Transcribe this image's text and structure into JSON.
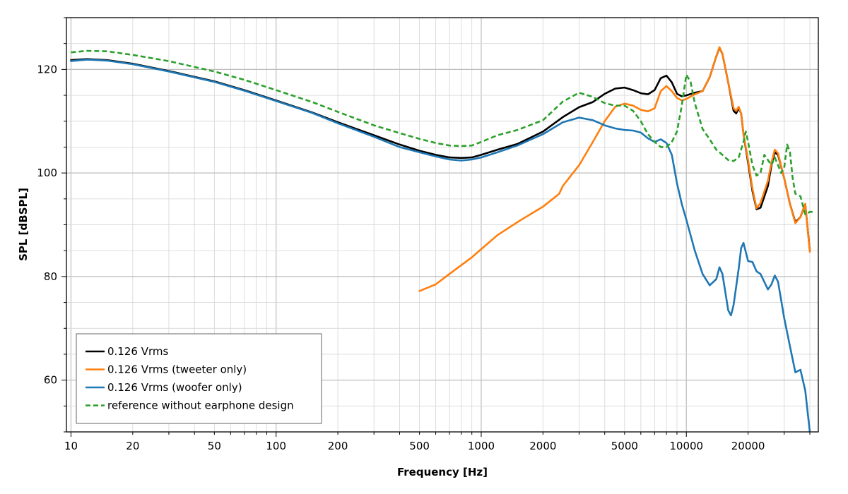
{
  "chart_data": {
    "type": "line",
    "title": "",
    "xlabel": "Frequency [Hz]",
    "ylabel": "SPL [dBSPL]",
    "x_scale": "log",
    "xlim": [
      9.5,
      44000
    ],
    "ylim": [
      50,
      130
    ],
    "grid": true,
    "legend_position": "bottom-left",
    "x_ticks": [
      10,
      20,
      50,
      100,
      200,
      500,
      1000,
      2000,
      5000,
      10000,
      20000
    ],
    "x_tick_labels": [
      "10",
      "20",
      "50",
      "100",
      "200",
      "500",
      "1000",
      "2000",
      "5000",
      "10000",
      "20000"
    ],
    "y_ticks": [
      60,
      80,
      100,
      120
    ],
    "y_tick_labels": [
      "60",
      "80",
      "100",
      "120"
    ],
    "series": [
      {
        "name": "0.126 Vrms",
        "color": "#000000",
        "dash": "solid",
        "points": [
          [
            10,
            121.8
          ],
          [
            12,
            122.0
          ],
          [
            15,
            121.8
          ],
          [
            20,
            121.1
          ],
          [
            30,
            119.7
          ],
          [
            50,
            117.7
          ],
          [
            70,
            116.0
          ],
          [
            100,
            114.0
          ],
          [
            150,
            111.7
          ],
          [
            200,
            109.8
          ],
          [
            300,
            107.3
          ],
          [
            400,
            105.5
          ],
          [
            500,
            104.3
          ],
          [
            600,
            103.5
          ],
          [
            700,
            103.0
          ],
          [
            800,
            102.9
          ],
          [
            900,
            103.0
          ],
          [
            1000,
            103.5
          ],
          [
            1200,
            104.5
          ],
          [
            1500,
            105.6
          ],
          [
            2000,
            108.0
          ],
          [
            2500,
            110.8
          ],
          [
            3000,
            112.7
          ],
          [
            3500,
            113.7
          ],
          [
            4000,
            115.3
          ],
          [
            4500,
            116.3
          ],
          [
            5000,
            116.5
          ],
          [
            5500,
            116.0
          ],
          [
            6000,
            115.4
          ],
          [
            6500,
            115.2
          ],
          [
            7000,
            116.0
          ],
          [
            7500,
            118.3
          ],
          [
            8000,
            118.8
          ],
          [
            8500,
            117.5
          ],
          [
            9000,
            115.3
          ],
          [
            9500,
            114.8
          ],
          [
            10000,
            115.0
          ],
          [
            11000,
            115.5
          ],
          [
            12000,
            115.8
          ],
          [
            13000,
            118.5
          ],
          [
            14000,
            122.5
          ],
          [
            14500,
            124.2
          ],
          [
            15000,
            123.0
          ],
          [
            16000,
            117.5
          ],
          [
            17000,
            112.0
          ],
          [
            17500,
            111.5
          ],
          [
            18000,
            112.5
          ],
          [
            18500,
            111.5
          ],
          [
            19000,
            107.5
          ],
          [
            20000,
            102.0
          ],
          [
            21000,
            96.5
          ],
          [
            22000,
            93.0
          ],
          [
            23000,
            93.3
          ],
          [
            25000,
            97.5
          ],
          [
            26000,
            101.5
          ],
          [
            27000,
            104.0
          ],
          [
            28000,
            103.5
          ],
          [
            30000,
            99.0
          ],
          [
            32000,
            94.0
          ],
          [
            34000,
            90.5
          ],
          [
            36000,
            91.5
          ],
          [
            38000,
            94.0
          ],
          [
            40000,
            85.0
          ]
        ]
      },
      {
        "name": "0.126 Vrms (tweeter only)",
        "color": "#ff7f0e",
        "dash": "solid",
        "points": [
          [
            500,
            77.2
          ],
          [
            600,
            78.5
          ],
          [
            700,
            80.5
          ],
          [
            800,
            82.2
          ],
          [
            900,
            83.7
          ],
          [
            1000,
            85.3
          ],
          [
            1200,
            88.0
          ],
          [
            1500,
            90.5
          ],
          [
            2000,
            93.5
          ],
          [
            2200,
            94.8
          ],
          [
            2400,
            96.0
          ],
          [
            2500,
            97.5
          ],
          [
            3000,
            101.5
          ],
          [
            3500,
            106.0
          ],
          [
            4000,
            110.0
          ],
          [
            4500,
            112.8
          ],
          [
            5000,
            113.4
          ],
          [
            5500,
            113.0
          ],
          [
            6000,
            112.2
          ],
          [
            6500,
            111.9
          ],
          [
            7000,
            112.5
          ],
          [
            7500,
            115.8
          ],
          [
            8000,
            116.8
          ],
          [
            8500,
            115.8
          ],
          [
            9000,
            114.5
          ],
          [
            9500,
            114.0
          ],
          [
            10000,
            114.3
          ],
          [
            11000,
            115.2
          ],
          [
            12000,
            115.8
          ],
          [
            13000,
            118.5
          ],
          [
            14000,
            122.5
          ],
          [
            14500,
            124.3
          ],
          [
            15000,
            123.0
          ],
          [
            16000,
            117.5
          ],
          [
            17000,
            112.5
          ],
          [
            17500,
            112.0
          ],
          [
            18000,
            112.8
          ],
          [
            18500,
            111.5
          ],
          [
            19000,
            107.5
          ],
          [
            20000,
            102.5
          ],
          [
            21000,
            97.0
          ],
          [
            22000,
            93.2
          ],
          [
            23000,
            94.2
          ],
          [
            25000,
            98.5
          ],
          [
            26000,
            102.0
          ],
          [
            27000,
            104.5
          ],
          [
            28000,
            103.8
          ],
          [
            30000,
            99.0
          ],
          [
            32000,
            94.0
          ],
          [
            34000,
            90.3
          ],
          [
            36000,
            91.5
          ],
          [
            38000,
            94.0
          ],
          [
            40000,
            84.8
          ]
        ]
      },
      {
        "name": "0.126 Vrms (woofer only)",
        "color": "#1f77b4",
        "dash": "solid",
        "points": [
          [
            10,
            121.6
          ],
          [
            12,
            121.9
          ],
          [
            15,
            121.7
          ],
          [
            20,
            121.0
          ],
          [
            30,
            119.6
          ],
          [
            50,
            117.6
          ],
          [
            70,
            115.9
          ],
          [
            100,
            113.9
          ],
          [
            150,
            111.6
          ],
          [
            200,
            109.6
          ],
          [
            300,
            107.0
          ],
          [
            400,
            105.0
          ],
          [
            500,
            104.0
          ],
          [
            600,
            103.2
          ],
          [
            700,
            102.6
          ],
          [
            800,
            102.4
          ],
          [
            900,
            102.6
          ],
          [
            1000,
            103.0
          ],
          [
            1200,
            104.0
          ],
          [
            1500,
            105.3
          ],
          [
            2000,
            107.5
          ],
          [
            2500,
            109.8
          ],
          [
            3000,
            110.7
          ],
          [
            3500,
            110.2
          ],
          [
            4000,
            109.2
          ],
          [
            4500,
            108.6
          ],
          [
            5000,
            108.3
          ],
          [
            5500,
            108.2
          ],
          [
            6000,
            107.8
          ],
          [
            6500,
            106.7
          ],
          [
            7000,
            106.0
          ],
          [
            7500,
            106.5
          ],
          [
            8000,
            105.8
          ],
          [
            8500,
            103.5
          ],
          [
            9000,
            98.0
          ],
          [
            9500,
            94.0
          ],
          [
            10000,
            91.0
          ],
          [
            11000,
            85.0
          ],
          [
            12000,
            80.5
          ],
          [
            13000,
            78.3
          ],
          [
            14000,
            79.5
          ],
          [
            14500,
            81.8
          ],
          [
            15000,
            80.5
          ],
          [
            16000,
            73.5
          ],
          [
            16500,
            72.5
          ],
          [
            17000,
            74.5
          ],
          [
            18000,
            81.5
          ],
          [
            18500,
            85.5
          ],
          [
            19000,
            86.5
          ],
          [
            20000,
            83.0
          ],
          [
            21000,
            82.8
          ],
          [
            22000,
            81.0
          ],
          [
            23000,
            80.5
          ],
          [
            25000,
            77.5
          ],
          [
            26000,
            78.5
          ],
          [
            27000,
            80.2
          ],
          [
            28000,
            79.0
          ],
          [
            30000,
            72.0
          ],
          [
            32000,
            66.5
          ],
          [
            34000,
            61.5
          ],
          [
            36000,
            62.0
          ],
          [
            38000,
            58.0
          ],
          [
            40000,
            50.0
          ]
        ]
      },
      {
        "name": "reference without earphone design",
        "color": "#2ca02c",
        "dash": "dashed",
        "points": [
          [
            10,
            123.3
          ],
          [
            12,
            123.6
          ],
          [
            15,
            123.5
          ],
          [
            20,
            122.8
          ],
          [
            30,
            121.6
          ],
          [
            50,
            119.6
          ],
          [
            70,
            118.0
          ],
          [
            100,
            116.0
          ],
          [
            150,
            113.7
          ],
          [
            200,
            111.8
          ],
          [
            300,
            109.2
          ],
          [
            400,
            107.7
          ],
          [
            500,
            106.6
          ],
          [
            600,
            105.8
          ],
          [
            700,
            105.3
          ],
          [
            800,
            105.2
          ],
          [
            900,
            105.3
          ],
          [
            1000,
            106.0
          ],
          [
            1200,
            107.3
          ],
          [
            1500,
            108.3
          ],
          [
            2000,
            110.2
          ],
          [
            2500,
            113.8
          ],
          [
            3000,
            115.5
          ],
          [
            3500,
            114.7
          ],
          [
            4000,
            113.5
          ],
          [
            4500,
            113.0
          ],
          [
            5000,
            113.0
          ],
          [
            5500,
            112.0
          ],
          [
            6000,
            110.0
          ],
          [
            6500,
            107.5
          ],
          [
            7000,
            106.0
          ],
          [
            7500,
            105.0
          ],
          [
            8000,
            105.0
          ],
          [
            8500,
            106.0
          ],
          [
            9000,
            108.0
          ],
          [
            9500,
            113.0
          ],
          [
            10000,
            119.0
          ],
          [
            10500,
            117.5
          ],
          [
            11000,
            113.5
          ],
          [
            12000,
            108.5
          ],
          [
            13000,
            106.5
          ],
          [
            14000,
            104.5
          ],
          [
            15000,
            103.5
          ],
          [
            16000,
            102.5
          ],
          [
            17000,
            102.3
          ],
          [
            18000,
            103.0
          ],
          [
            19000,
            106.0
          ],
          [
            19500,
            108.0
          ],
          [
            20000,
            106.0
          ],
          [
            21000,
            101.5
          ],
          [
            22000,
            99.5
          ],
          [
            23000,
            100.0
          ],
          [
            24000,
            103.5
          ],
          [
            25000,
            102.5
          ],
          [
            26000,
            101.5
          ],
          [
            27000,
            103.0
          ],
          [
            28000,
            101.5
          ],
          [
            29000,
            100.0
          ],
          [
            30000,
            101.0
          ],
          [
            31000,
            105.5
          ],
          [
            32000,
            104.0
          ],
          [
            33000,
            99.0
          ],
          [
            34000,
            96.0
          ],
          [
            36000,
            95.5
          ],
          [
            38000,
            92.0
          ],
          [
            40000,
            92.5
          ],
          [
            41500,
            92.5
          ]
        ]
      }
    ]
  }
}
